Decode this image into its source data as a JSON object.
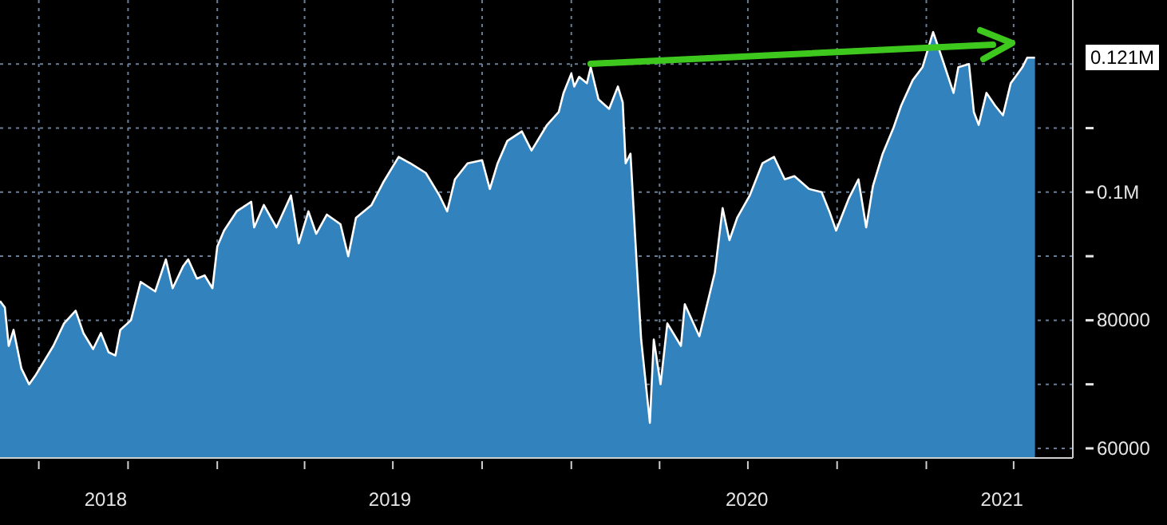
{
  "chart_data": {
    "type": "area",
    "color": "#ffffff",
    "x": [
      "2018-05-22",
      "2018-05-27",
      "2018-05-31",
      "2018-06-05",
      "2018-06-13",
      "2018-06-21",
      "2018-06-28",
      "2018-07-06",
      "2018-07-16",
      "2018-07-27",
      "2018-08-08",
      "2018-08-16",
      "2018-08-26",
      "2018-09-03",
      "2018-09-11",
      "2018-09-18",
      "2018-09-23",
      "2018-10-04",
      "2018-10-09",
      "2018-10-14",
      "2018-10-29",
      "2018-11-09",
      "2018-11-16",
      "2018-11-27",
      "2018-12-02",
      "2018-12-11",
      "2018-12-19",
      "2018-12-27",
      "2019-01-01",
      "2019-01-08",
      "2019-01-21",
      "2019-02-05",
      "2019-02-08",
      "2019-02-18",
      "2019-03-03",
      "2019-03-18",
      "2019-03-26",
      "2019-04-05",
      "2019-04-13",
      "2019-04-24",
      "2019-05-08",
      "2019-05-16",
      "2019-05-24",
      "2019-06-05",
      "2019-06-09",
      "2019-06-21",
      "2019-07-07",
      "2019-07-19",
      "2019-08-04",
      "2019-08-18",
      "2019-08-26",
      "2019-09-03",
      "2019-09-16",
      "2019-10-01",
      "2019-10-09",
      "2019-10-17",
      "2019-10-27",
      "2019-11-11",
      "2019-11-21",
      "2019-12-07",
      "2019-12-19",
      "2019-12-24",
      "2020-01-01",
      "2020-01-04",
      "2020-01-09",
      "2020-01-17",
      "2020-01-21",
      "2020-01-29",
      "2020-02-09",
      "2020-02-18",
      "2020-02-23",
      "2020-02-26",
      "2020-03-02",
      "2020-03-07",
      "2020-03-13",
      "2020-03-22",
      "2020-03-26",
      "2020-04-02",
      "2020-04-09",
      "2020-04-23",
      "2020-04-27",
      "2020-05-12",
      "2020-05-20",
      "2020-05-28",
      "2020-06-05",
      "2020-06-12",
      "2020-06-20",
      "2020-07-03",
      "2020-07-16",
      "2020-07-28",
      "2020-08-08",
      "2020-08-18",
      "2020-09-02",
      "2020-09-15",
      "2020-09-23",
      "2020-09-30",
      "2020-10-13",
      "2020-10-23",
      "2020-10-31",
      "2020-11-07",
      "2020-11-17",
      "2020-11-28",
      "2020-12-06",
      "2020-12-18",
      "2020-12-28",
      "2021-01-08",
      "2021-01-17",
      "2021-01-29",
      "2021-02-03",
      "2021-02-14",
      "2021-02-19",
      "2021-02-24",
      "2021-03-04",
      "2021-03-13",
      "2021-03-21",
      "2021-03-29",
      "2021-04-10",
      "2021-04-15",
      "2021-04-23"
    ],
    "values": [
      83000,
      82000,
      76000,
      78500,
      72500,
      70000,
      71500,
      73500,
      76000,
      79500,
      81500,
      78000,
      75500,
      78000,
      75000,
      74500,
      78500,
      80000,
      83000,
      86000,
      84500,
      89500,
      85000,
      88500,
      89500,
      86500,
      87000,
      85000,
      91500,
      94000,
      97000,
      98500,
      94500,
      98000,
      94500,
      99500,
      92000,
      97000,
      93500,
      96500,
      95000,
      90000,
      96000,
      97500,
      98000,
      101500,
      105500,
      104500,
      103000,
      99500,
      97000,
      102000,
      104500,
      105000,
      100500,
      104500,
      108000,
      109500,
      106500,
      110500,
      112500,
      115500,
      118500,
      116500,
      118000,
      117000,
      119500,
      114500,
      113000,
      116500,
      114000,
      104500,
      106000,
      92500,
      77000,
      64000,
      77000,
      70000,
      79500,
      76000,
      82500,
      77500,
      82500,
      87500,
      97500,
      92500,
      96000,
      99500,
      104500,
      105500,
      102000,
      102500,
      100500,
      100000,
      97000,
      94000,
      99000,
      102000,
      94500,
      101000,
      106000,
      110000,
      113500,
      117500,
      119500,
      125000,
      121000,
      115500,
      119500,
      120000,
      112500,
      110500,
      115500,
      113500,
      112000,
      117000,
      119500,
      121000,
      121000
    ],
    "xlim": [
      "2018-05-22",
      "2021-06-01"
    ],
    "xticks": [
      {
        "value": "2018-07-01",
        "label": null
      },
      {
        "value": "2018-09-08",
        "label": "2018"
      },
      {
        "value": "2018-10-01",
        "label": null
      },
      {
        "value": "2019-01-01",
        "label": null
      },
      {
        "value": "2019-04-01",
        "label": null
      },
      {
        "value": "2019-06-28",
        "label": "2019"
      },
      {
        "value": "2019-07-01",
        "label": null
      },
      {
        "value": "2019-10-01",
        "label": null
      },
      {
        "value": "2020-01-01",
        "label": null
      },
      {
        "value": "2020-04-01",
        "label": null
      },
      {
        "value": "2020-06-30",
        "label": "2020"
      },
      {
        "value": "2020-07-01",
        "label": null
      },
      {
        "value": "2020-10-01",
        "label": null
      },
      {
        "value": "2021-01-01",
        "label": null
      },
      {
        "value": "2021-03-20",
        "label": "2021"
      },
      {
        "value": "2021-04-01",
        "label": null
      }
    ],
    "ylim": [
      58500,
      130000
    ],
    "yticks": [
      60000,
      {
        "value": 70000,
        "label": null
      },
      80000,
      {
        "value": 90000,
        "label": null
      },
      {
        "value": 100000,
        "label": "0.1M"
      },
      {
        "value": 110000,
        "label": null
      },
      {
        "value": 120000,
        "label": null
      }
    ],
    "grid": true,
    "annotations": [
      "0.121M"
    ]
  }
}
